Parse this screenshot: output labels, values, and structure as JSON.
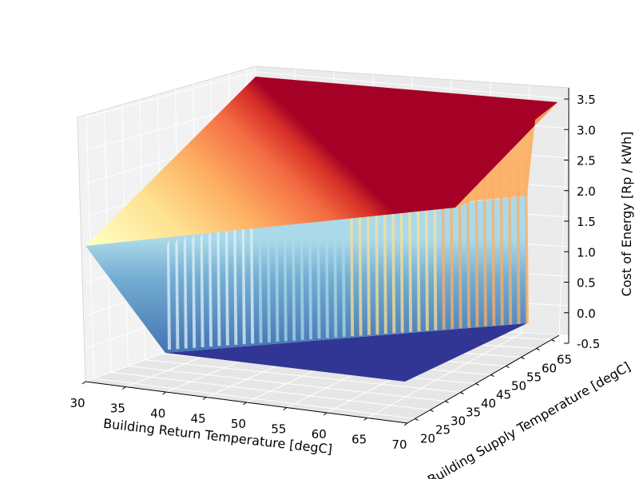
{
  "chart_data": {
    "type": "surface3d",
    "title": "",
    "xlabel": "Building Return Temperature [degC]",
    "ylabel": "Building Supply Temperature [degC]",
    "zlabel": "Cost of Energy [Rp / kWh]",
    "x_ticks": [
      "30",
      "35",
      "40",
      "45",
      "50",
      "55",
      "60",
      "65",
      "70"
    ],
    "y_ticks": [
      "20",
      "25",
      "30",
      "35",
      "40",
      "45",
      "50",
      "55",
      "60",
      "65"
    ],
    "z_ticks": [
      "-0.5",
      "0.0",
      "0.5",
      "1.0",
      "1.5",
      "2.0",
      "2.5",
      "3.0",
      "3.5"
    ],
    "xlim": [
      30,
      70
    ],
    "ylim": [
      20,
      65
    ],
    "zlim": [
      -0.5,
      3.5
    ],
    "colormap": "RdYlBu_r",
    "grid": true,
    "surface_notes": "Cost rises linearly with supply temperature on the high plane; for supply temperatures below the return temperature the cost drops to 0 (dark blue floor).",
    "plane_z_at_y": {
      "y": [
        20,
        65
      ],
      "z": [
        1.05,
        3.5
      ]
    }
  }
}
